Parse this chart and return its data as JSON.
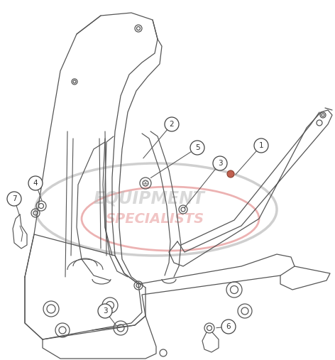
{
  "background_color": "#ffffff",
  "line_color": "#555555",
  "line_color_dark": "#333333",
  "watermark_text1": "EQUIPMENT",
  "watermark_text2": "SPECIALISTS",
  "watermark_color_gray": "#bbbbbb",
  "watermark_color_red": "#e08080",
  "label_circle_color": "#ffffff",
  "label_circle_edge": "#444444",
  "label_text_color": "#333333",
  "fig_width": 4.72,
  "fig_height": 5.07,
  "dpi": 100
}
